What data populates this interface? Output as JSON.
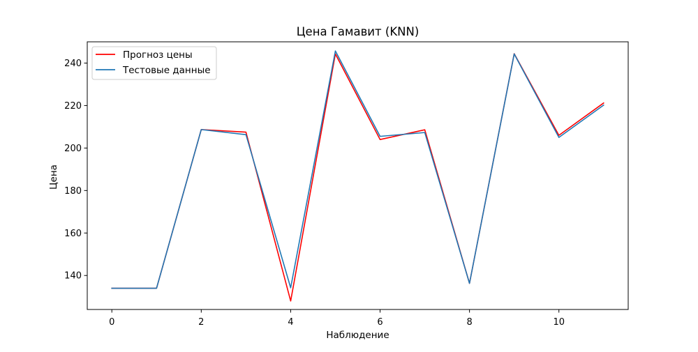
{
  "chart_data": {
    "type": "line",
    "title": "Цена Гамавит (KNN)",
    "xlabel": "Наблюдение",
    "ylabel": "Цена",
    "x": [
      0,
      1,
      2,
      3,
      4,
      5,
      6,
      7,
      8,
      9,
      10,
      11
    ],
    "xlim": [
      -0.55,
      11.55
    ],
    "ylim": [
      124,
      250
    ],
    "xticks": [
      "0",
      "2",
      "4",
      "6",
      "8",
      "10"
    ],
    "yticks": [
      "140",
      "160",
      "180",
      "200",
      "220",
      "240"
    ],
    "grid": false,
    "legend_position": "top-left",
    "series": [
      {
        "name": "Прогноз цены",
        "color": "#ff0000",
        "values": [
          134,
          134,
          208.7,
          207.5,
          128,
          244.3,
          204,
          208.6,
          136.3,
          244.4,
          206,
          221.2
        ]
      },
      {
        "name": "Тестовые данные",
        "color": "#1f77b4",
        "values": [
          134,
          134,
          208.7,
          206.3,
          134.2,
          245.7,
          205.5,
          207.3,
          136.3,
          244.3,
          205,
          220.2
        ]
      }
    ]
  }
}
